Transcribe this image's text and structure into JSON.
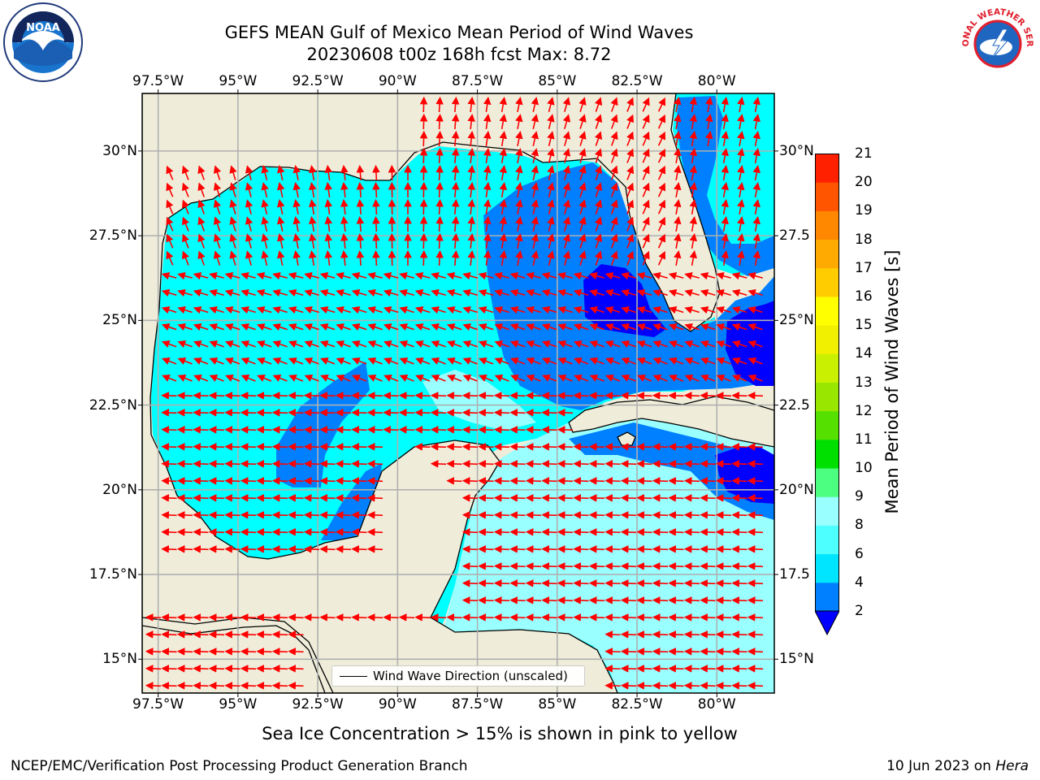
{
  "title": {
    "line1": "GEFS MEAN Gulf of Mexico Mean Period of Wind Waves",
    "line2": "20230608 t00z 168h fcst   Max: 8.72"
  },
  "map": {
    "lon_ticks": [
      "97.5°W",
      "95°W",
      "92.5°W",
      "90°W",
      "87.5°W",
      "85°W",
      "82.5°W",
      "80°W"
    ],
    "lon_values": [
      -97.5,
      -95,
      -92.5,
      -90,
      -87.5,
      -85,
      -82.5,
      -80
    ],
    "lat_ticks": [
      "30°N",
      "27.5°N",
      "25°N",
      "22.5°N",
      "20°N",
      "17.5°N",
      "15°N"
    ],
    "lat_ticks_right": [
      "30°N",
      "27.5",
      "25°N",
      "22.5",
      "20°N",
      "17.5",
      "15°N"
    ],
    "lat_values": [
      30,
      27.5,
      25,
      22.5,
      20,
      17.5,
      15
    ],
    "extent": {
      "lon": [
        -98,
        -78.2
      ],
      "lat": [
        14,
        31.7
      ]
    },
    "land_color": "#efedda",
    "gridlines": true,
    "legend_label": "Wind Wave Direction (unscaled)",
    "arrow_color": "#ff0000"
  },
  "colorbar": {
    "label": "Mean Period of Wind Waves [s]",
    "ticks": [
      "2",
      "4",
      "6",
      "8",
      "9",
      "10",
      "11",
      "12",
      "13",
      "14",
      "15",
      "16",
      "17",
      "18",
      "19",
      "20",
      "21"
    ],
    "colors": [
      "#0080ff",
      "#00e5ff",
      "#4dffff",
      "#99ffff",
      "#4dff80",
      "#00e000",
      "#55e000",
      "#99e600",
      "#c8f000",
      "#f0f000",
      "#ffff00",
      "#ffcc00",
      "#ffaa00",
      "#ff8800",
      "#ff5500",
      "#ff2000"
    ],
    "under_color": "#0000ff"
  },
  "footnote": "Sea Ice Concentration > 15% is shown in pink to yellow",
  "credit": "NCEP/EMC/Verification Post Processing Product Generation Branch",
  "date": {
    "text": "10 Jun 2023 on ",
    "machine": "Hera"
  },
  "logos": {
    "noaa_text": "NOAA",
    "nws_text": "NATIONAL WEATHER SERVICE"
  }
}
